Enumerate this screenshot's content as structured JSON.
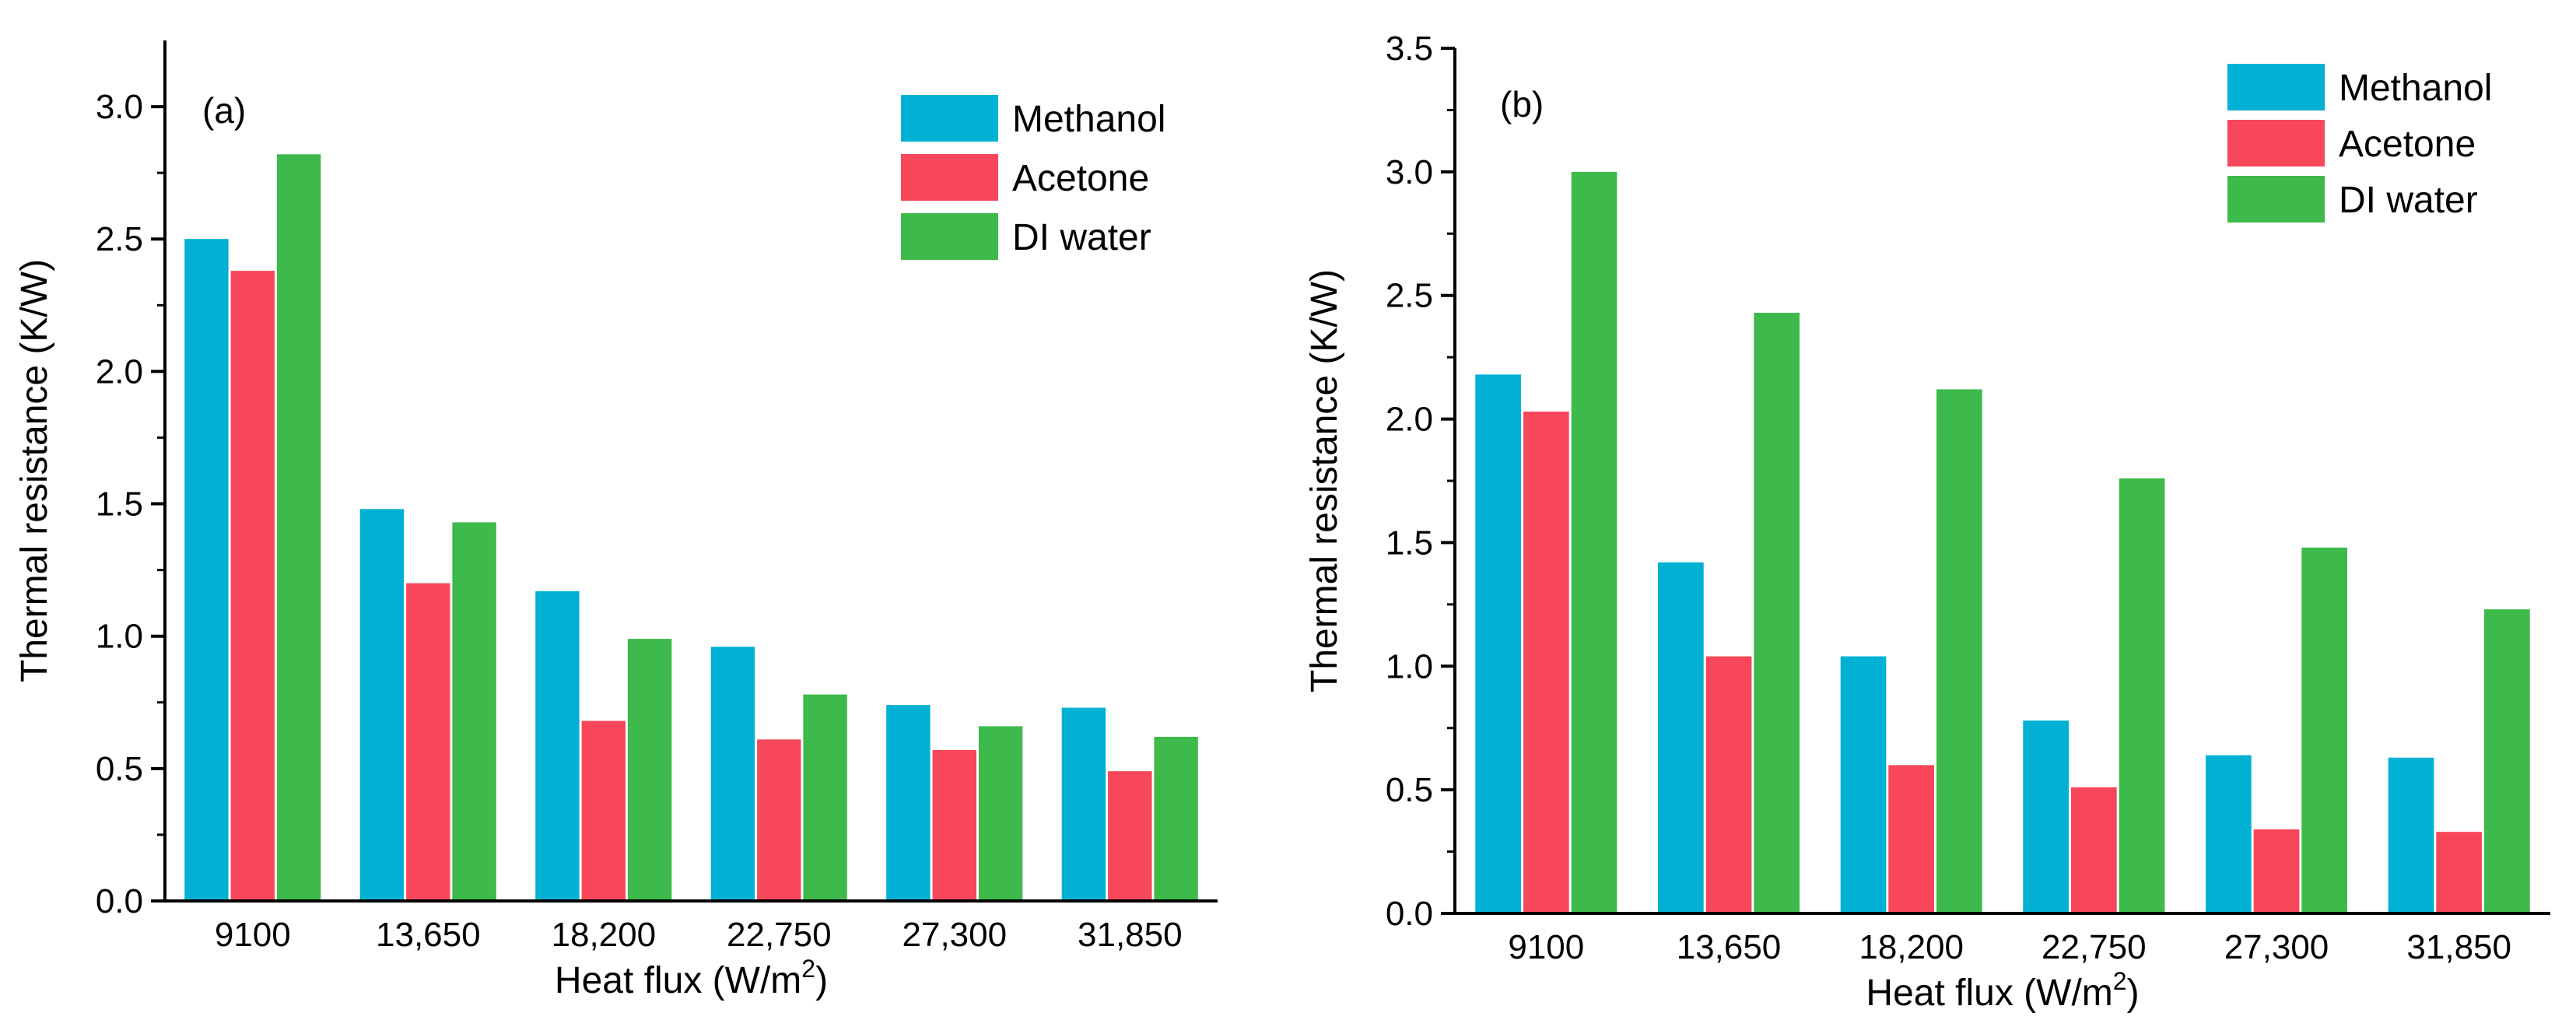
{
  "colors": {
    "Methanol": "#00B1D3",
    "Acetone": "#F8475A",
    "DI water": "#3DBA4B"
  },
  "chart_data": [
    {
      "type": "bar",
      "panel_label": "(a)",
      "categories": [
        "9100",
        "13,650",
        "18,200",
        "22,750",
        "27,300",
        "31,850"
      ],
      "series": [
        {
          "name": "Methanol",
          "values": [
            2.5,
            1.48,
            1.17,
            0.96,
            0.74,
            0.73
          ]
        },
        {
          "name": "Acetone",
          "values": [
            2.38,
            1.2,
            0.68,
            0.61,
            0.57,
            0.49
          ]
        },
        {
          "name": "DI water",
          "values": [
            2.82,
            1.43,
            0.99,
            0.78,
            0.66,
            0.62
          ]
        }
      ],
      "xlabel_main": "Heat flux (W/m",
      "xlabel_sup": "2",
      "xlabel_close": ")",
      "ylabel": "Thermal resistance (K/W)",
      "ylim": [
        0,
        3.25
      ],
      "yticks": [
        "0.0",
        "0.5",
        "1.0",
        "1.5",
        "2.0",
        "2.5",
        "3.0"
      ],
      "legend_position": "top-right"
    },
    {
      "type": "bar",
      "panel_label": "(b)",
      "categories": [
        "9100",
        "13,650",
        "18,200",
        "22,750",
        "27,300",
        "31,850"
      ],
      "series": [
        {
          "name": "Methanol",
          "values": [
            2.18,
            1.42,
            1.04,
            0.78,
            0.64,
            0.63
          ]
        },
        {
          "name": "Acetone",
          "values": [
            2.03,
            1.04,
            0.6,
            0.51,
            0.34,
            0.33
          ]
        },
        {
          "name": "DI water",
          "values": [
            3.0,
            2.43,
            2.12,
            1.76,
            1.48,
            1.23
          ]
        }
      ],
      "xlabel_main": "Heat flux (W/m",
      "xlabel_sup": "2",
      "xlabel_close": ")",
      "ylabel": "Thermal resistance (K/W)",
      "ylim": [
        0,
        3.5
      ],
      "yticks": [
        "0.0",
        "0.5",
        "1.0",
        "1.5",
        "2.0",
        "2.5",
        "3.0",
        "3.5"
      ],
      "legend_position": "top-right"
    }
  ]
}
